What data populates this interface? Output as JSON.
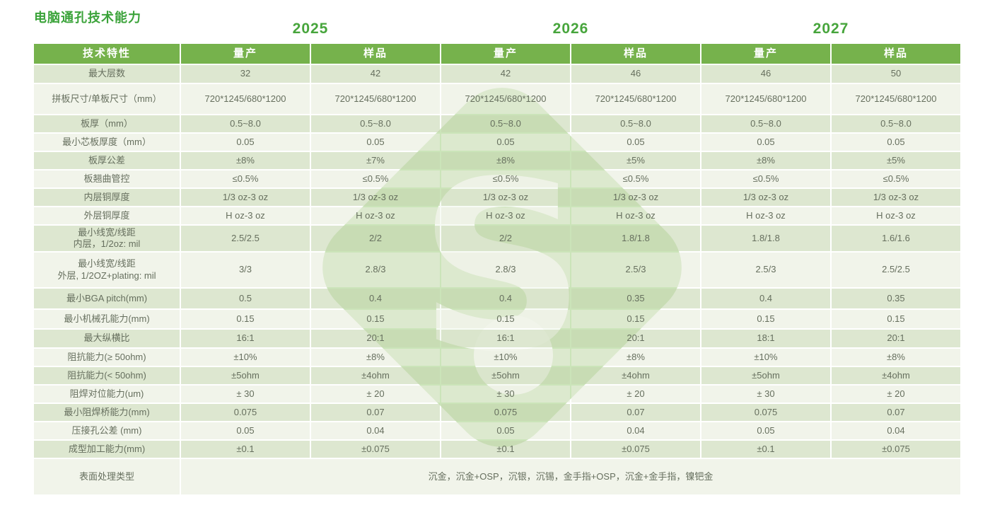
{
  "page": {
    "title": "电脑通孔技术能力"
  },
  "year_groups": [
    "2025",
    "2026",
    "2027"
  ],
  "table": {
    "feature_header": "技术特性",
    "sub_headers": [
      "量产",
      "样品",
      "量产",
      "样品",
      "量产",
      "样品"
    ],
    "rows": [
      {
        "label": "最大层数",
        "values": [
          "32",
          "42",
          "42",
          "46",
          "46",
          "50"
        ]
      },
      {
        "label": "拼板尺寸/单板尺寸（mm）",
        "values": [
          "720*1245/680*1200",
          "720*1245/680*1200",
          "720*1245/680*1200",
          "720*1245/680*1200",
          "720*1245/680*1200",
          "720*1245/680*1200"
        ]
      },
      {
        "label": "板厚（mm）",
        "values": [
          "0.5~8.0",
          "0.5~8.0",
          "0.5~8.0",
          "0.5~8.0",
          "0.5~8.0",
          "0.5~8.0"
        ]
      },
      {
        "label": "最小芯板厚度（mm）",
        "values": [
          "0.05",
          "0.05",
          "0.05",
          "0.05",
          "0.05",
          "0.05"
        ]
      },
      {
        "label": "板厚公差",
        "values": [
          "±8%",
          "±7%",
          "±8%",
          "±5%",
          "±8%",
          "±5%"
        ]
      },
      {
        "label": "板翘曲管控",
        "values": [
          "≤0.5%",
          "≤0.5%",
          "≤0.5%",
          "≤0.5%",
          "≤0.5%",
          "≤0.5%"
        ]
      },
      {
        "label": "内层铜厚度",
        "values": [
          "1/3 oz-3 oz",
          "1/3 oz-3 oz",
          "1/3 oz-3 oz",
          "1/3 oz-3 oz",
          "1/3 oz-3 oz",
          "1/3 oz-3 oz"
        ]
      },
      {
        "label": "外层铜厚度",
        "values": [
          "H oz-3 oz",
          "H oz-3 oz",
          "H oz-3 oz",
          "H oz-3 oz",
          "H oz-3 oz",
          "H oz-3 oz"
        ]
      },
      {
        "label": "最小线宽/线距\n内层，1/2oz: mil",
        "values": [
          "2.5/2.5",
          "2/2",
          "2/2",
          "1.8/1.8",
          "1.8/1.8",
          "1.6/1.6"
        ]
      },
      {
        "label": "最小线宽/线距\n外层, 1/2OZ+plating: mil",
        "values": [
          "3/3",
          "2.8/3",
          "2.8/3",
          "2.5/3",
          "2.5/3",
          "2.5/2.5"
        ]
      },
      {
        "label": "最小BGA pitch(mm)",
        "values": [
          "0.5",
          "0.4",
          "0.4",
          "0.35",
          "0.4",
          "0.35"
        ]
      },
      {
        "label": "最小机械孔能力(mm)",
        "values": [
          "0.15",
          "0.15",
          "0.15",
          "0.15",
          "0.15",
          "0.15"
        ]
      },
      {
        "label": "最大纵横比",
        "values": [
          "16:1",
          "20:1",
          "16:1",
          "20:1",
          "18:1",
          "20:1"
        ]
      },
      {
        "label": "阻抗能力(≥ 50ohm)",
        "values": [
          "±10%",
          "±8%",
          "±10%",
          "±8%",
          "±10%",
          "±8%"
        ]
      },
      {
        "label": "阻抗能力(< 50ohm)",
        "values": [
          "±5ohm",
          "±4ohm",
          "±5ohm",
          "±4ohm",
          "±5ohm",
          "±4ohm"
        ]
      },
      {
        "label": "阻焊对位能力(um)",
        "values": [
          "± 30",
          "± 20",
          "± 30",
          "± 20",
          "± 30",
          "± 20"
        ]
      },
      {
        "label": "最小阻焊桥能力(mm)",
        "values": [
          "0.075",
          "0.07",
          "0.075",
          "0.07",
          "0.075",
          "0.07"
        ]
      },
      {
        "label": "压接孔公差 (mm)",
        "values": [
          "0.05",
          "0.04",
          "0.05",
          "0.04",
          "0.05",
          "0.04"
        ]
      },
      {
        "label": "成型加工能力(mm)",
        "values": [
          "±0.1",
          "±0.075",
          "±0.1",
          "±0.075",
          "±0.1",
          "±0.075"
        ]
      }
    ],
    "surface_row": {
      "label": "表面处理类型",
      "value": "沉金，沉金+OSP，沉银，沉锡，金手指+OSP，沉金+金手指，镍钯金"
    }
  },
  "watermark": {
    "letter": "S"
  },
  "colors": {
    "header_green": "#76b24c",
    "accent_green": "#47a53c",
    "title_green": "#3ba33a",
    "row_green": "#dde7d0",
    "row_cream": "#f1f4ea",
    "cell_text": "#666f5e",
    "watermark_green": "#a0cd80"
  }
}
